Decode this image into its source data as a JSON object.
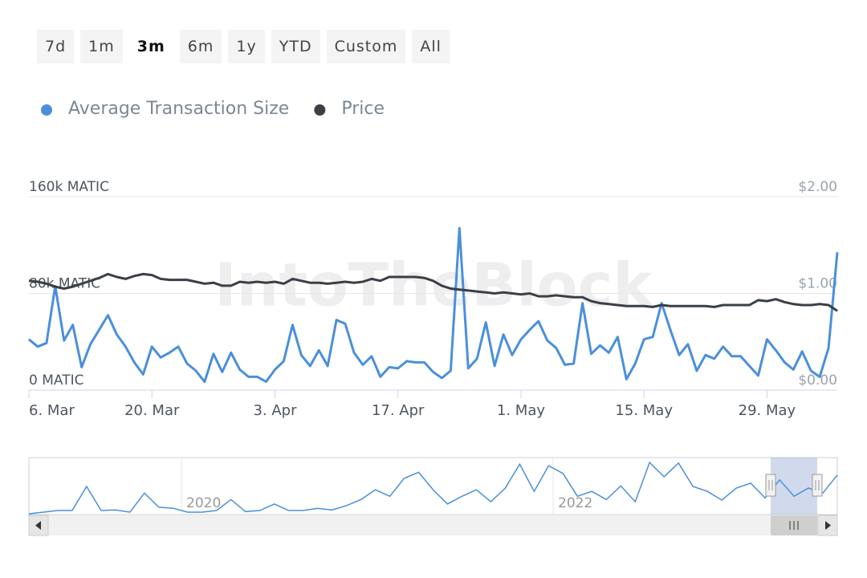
{
  "range_buttons": [
    "7d",
    "1m",
    "3m",
    "6m",
    "1y",
    "YTD",
    "Custom",
    "All"
  ],
  "selected_range": 2,
  "watermark": "IntoTheBlock",
  "chart_data": {
    "type": "line",
    "categories": [
      "6. Mar",
      null,
      null,
      null,
      null,
      null,
      null,
      null,
      null,
      null,
      null,
      null,
      null,
      null,
      "20. Mar",
      null,
      null,
      null,
      null,
      null,
      null,
      null,
      null,
      null,
      null,
      null,
      null,
      null,
      "3. Apr",
      null,
      null,
      null,
      null,
      null,
      null,
      null,
      null,
      null,
      null,
      null,
      null,
      null,
      "17. Apr",
      null,
      null,
      null,
      null,
      null,
      null,
      null,
      null,
      null,
      null,
      null,
      null,
      null,
      "1. May",
      null,
      null,
      null,
      null,
      null,
      null,
      null,
      null,
      null,
      null,
      null,
      null,
      null,
      "15. May",
      null,
      null,
      null,
      null,
      null,
      null,
      null,
      null,
      null,
      null,
      null,
      null,
      null,
      "29. May",
      null,
      null,
      null,
      null,
      null,
      null,
      null,
      null
    ],
    "series": [
      {
        "name": "Average Transaction Size",
        "color": "#4a8fdc",
        "axis": "y",
        "values": [
          42000,
          36000,
          39000,
          86000,
          41000,
          54000,
          19000,
          38000,
          50000,
          62000,
          46000,
          36000,
          23000,
          13000,
          36000,
          27000,
          31000,
          36000,
          22000,
          16000,
          7000,
          30000,
          15000,
          31000,
          17000,
          11000,
          11000,
          7000,
          17000,
          24000,
          54000,
          29000,
          20000,
          33000,
          20000,
          58000,
          55000,
          31000,
          21000,
          28000,
          11000,
          19000,
          18000,
          24000,
          23000,
          23000,
          15000,
          10000,
          16000,
          134000,
          18000,
          26000,
          56000,
          20000,
          46000,
          29000,
          42000,
          50000,
          57000,
          41000,
          35000,
          21000,
          22000,
          72000,
          30000,
          37000,
          31000,
          44000,
          9000,
          22000,
          42000,
          44000,
          72000,
          50000,
          29000,
          38000,
          16000,
          29000,
          26000,
          36000,
          28000,
          28000,
          20000,
          12000,
          42000,
          33000,
          23000,
          17000,
          32000,
          16000,
          11000,
          35000,
          114000
        ]
      },
      {
        "name": "Price",
        "color": "#3a4046",
        "axis": "y2",
        "values": [
          1.13,
          1.12,
          1.1,
          1.07,
          1.05,
          1.07,
          1.1,
          1.13,
          1.16,
          1.2,
          1.17,
          1.15,
          1.18,
          1.2,
          1.19,
          1.15,
          1.14,
          1.14,
          1.14,
          1.12,
          1.1,
          1.11,
          1.08,
          1.08,
          1.12,
          1.11,
          1.12,
          1.11,
          1.12,
          1.1,
          1.15,
          1.13,
          1.11,
          1.11,
          1.1,
          1.11,
          1.12,
          1.11,
          1.12,
          1.15,
          1.13,
          1.17,
          1.17,
          1.17,
          1.17,
          1.16,
          1.13,
          1.08,
          1.05,
          1.04,
          1.03,
          1.02,
          1.01,
          1.0,
          1.01,
          1.0,
          0.99,
          1.0,
          0.97,
          0.97,
          0.98,
          0.97,
          0.96,
          0.96,
          0.92,
          0.9,
          0.89,
          0.88,
          0.87,
          0.87,
          0.87,
          0.86,
          0.88,
          0.87,
          0.87,
          0.87,
          0.87,
          0.87,
          0.86,
          0.88,
          0.88,
          0.88,
          0.88,
          0.93,
          0.92,
          0.94,
          0.91,
          0.89,
          0.88,
          0.88,
          0.89,
          0.88,
          0.82
        ]
      }
    ],
    "ylim": [
      0,
      160000
    ],
    "yticks": [
      {
        "value": 0,
        "label": "0 MATIC"
      },
      {
        "value": 80000,
        "label": "80k MATIC"
      },
      {
        "value": 160000,
        "label": "160k MATIC"
      }
    ],
    "y2lim": [
      0,
      2
    ],
    "y2ticks": [
      {
        "value": 0,
        "label": "$0.00"
      },
      {
        "value": 1,
        "label": "$1.00"
      },
      {
        "value": 2,
        "label": "$2.00"
      }
    ],
    "grid": true,
    "legend": "top-left"
  },
  "navigator": {
    "labels": [
      "2020",
      "2022"
    ],
    "ylim": [
      0,
      100000
    ],
    "color": "#4a8fdc",
    "values": [
      0,
      3000,
      6000,
      6000,
      50000,
      6000,
      7000,
      3000,
      38000,
      12000,
      10000,
      3000,
      3000,
      6000,
      26000,
      4000,
      6000,
      18000,
      6000,
      6000,
      10000,
      7000,
      15000,
      26000,
      44000,
      32000,
      65000,
      76000,
      44000,
      18000,
      32000,
      44000,
      22000,
      47000,
      91000,
      41000,
      88000,
      74000,
      32000,
      41000,
      26000,
      51000,
      22000,
      94000,
      68000,
      93000,
      50000,
      41000,
      25000,
      47000,
      56000,
      29000,
      62000,
      32000,
      47000,
      38000,
      71000
    ]
  }
}
